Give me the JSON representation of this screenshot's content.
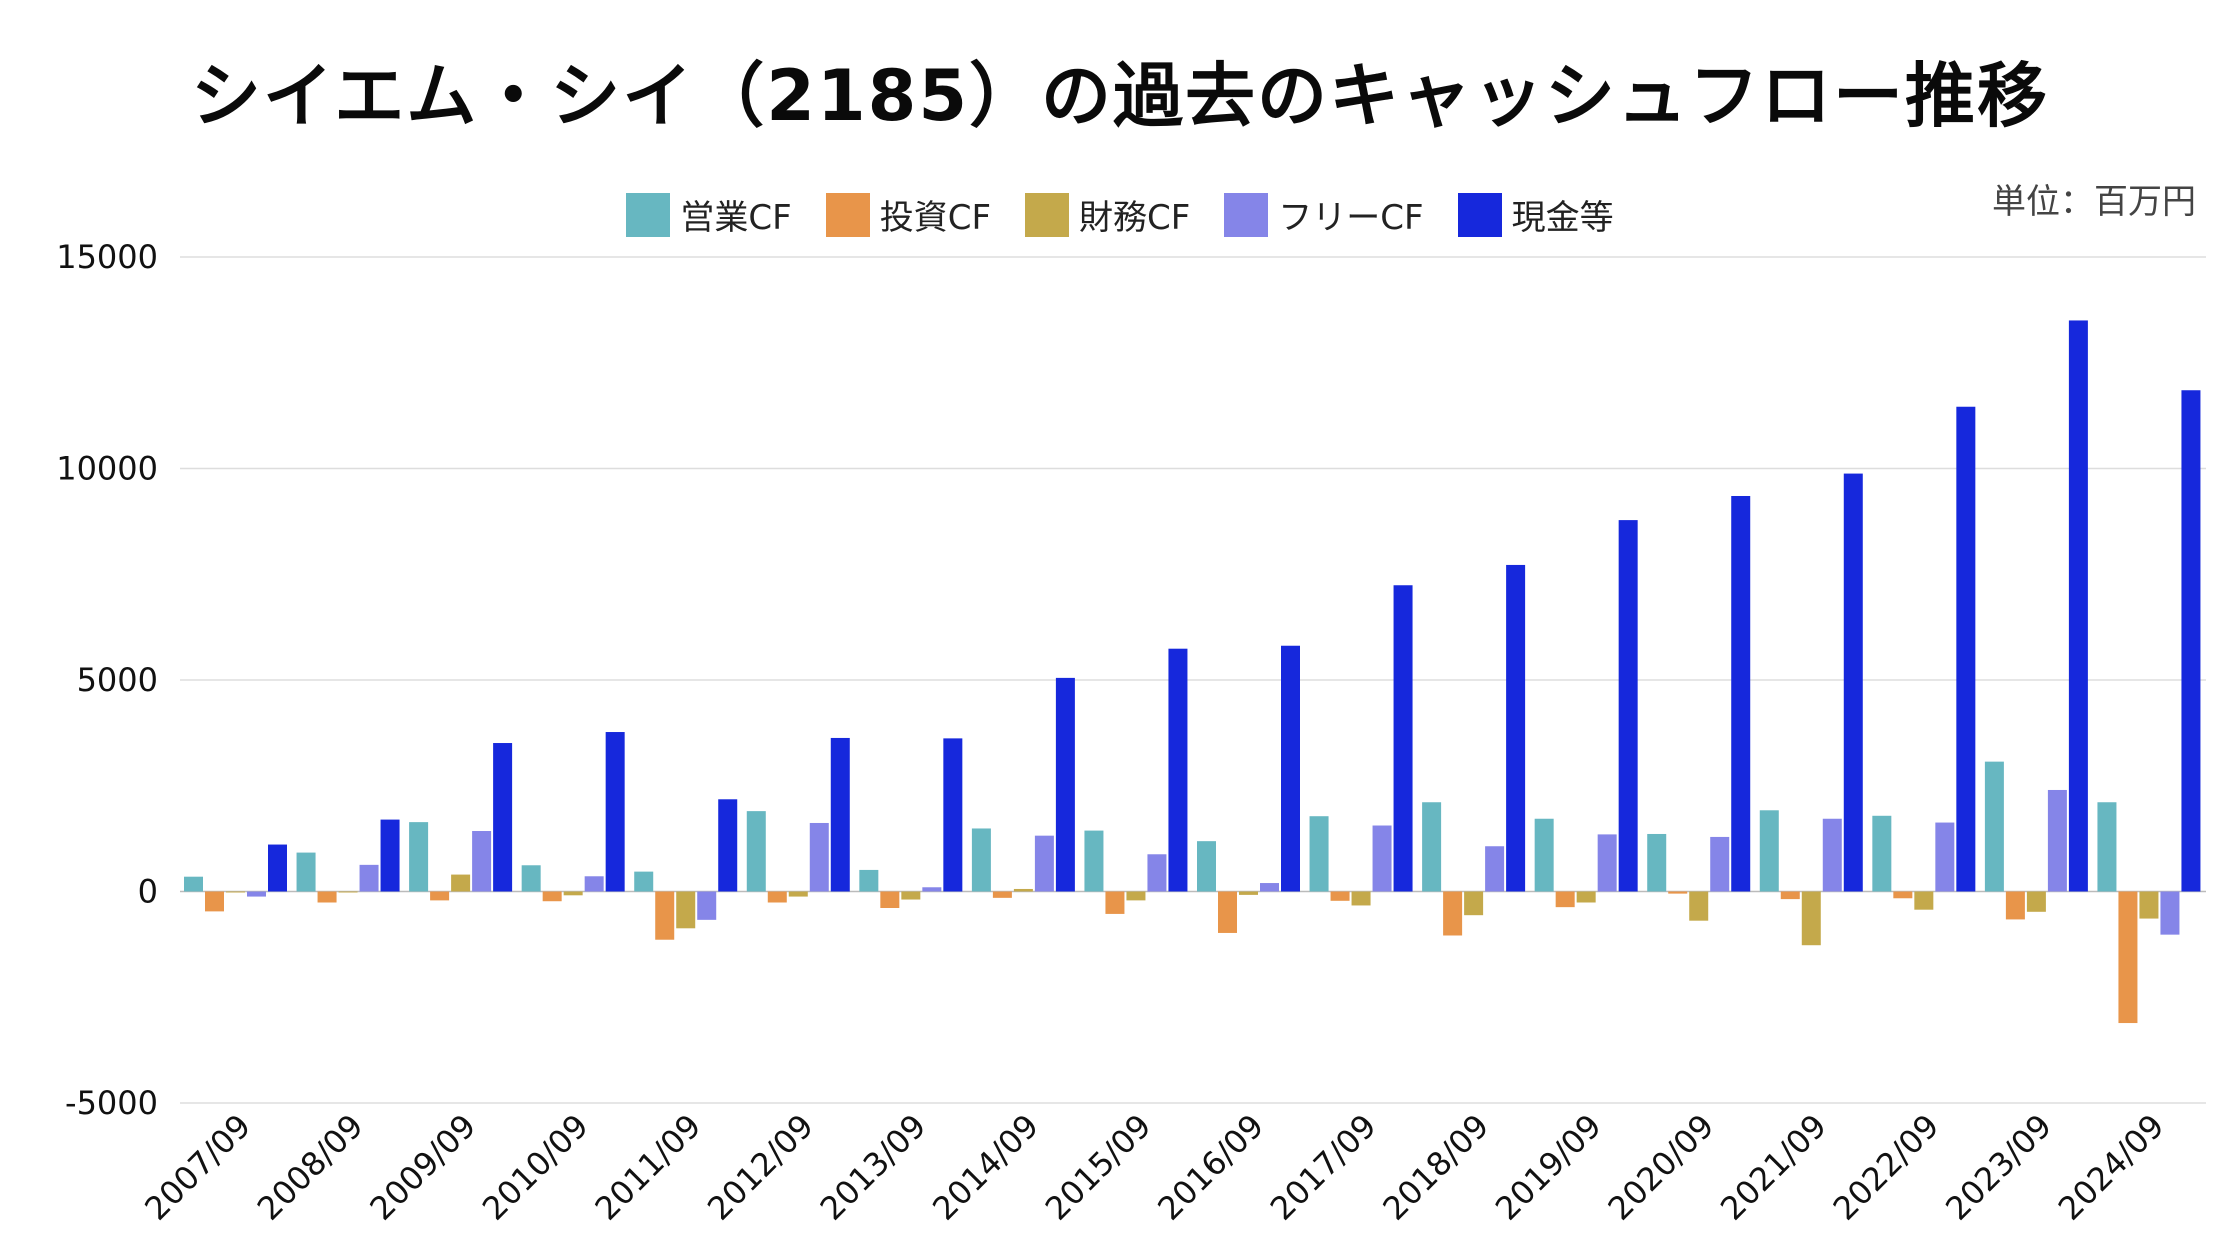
{
  "header": {
    "title": "シイエム・シイ（2185）の過去のキャッシュフロー推移",
    "unit": "単位：百万円"
  },
  "chart_data": {
    "type": "bar",
    "title": "シイエム・シイ（2185）の過去のキャッシュフロー推移",
    "unit": "単位：百万円",
    "xlabel": "",
    "ylabel": "",
    "ylim": [
      -5000,
      15000
    ],
    "yticks": [
      15000,
      10000,
      5000,
      0,
      -5000
    ],
    "grid": true,
    "legend_position": "top",
    "categories": [
      "2007/09",
      "2008/09",
      "2009/09",
      "2010/09",
      "2011/09",
      "2012/09",
      "2013/09",
      "2014/09",
      "2015/09",
      "2016/09",
      "2017/09",
      "2018/09",
      "2019/09",
      "2020/09",
      "2021/09",
      "2022/09",
      "2023/09",
      "2024/09"
    ],
    "series": [
      {
        "name": "営業CF",
        "color": "#67b7c1",
        "values": [
          350,
          920,
          1640,
          620,
          470,
          1900,
          510,
          1490,
          1440,
          1190,
          1780,
          2110,
          1720,
          1360,
          1920,
          1790,
          3070,
          2110
        ]
      },
      {
        "name": "投資CF",
        "color": "#e8954a",
        "values": [
          -470,
          -260,
          -210,
          -230,
          -1140,
          -260,
          -390,
          -150,
          -530,
          -980,
          -220,
          -1040,
          -370,
          -50,
          -180,
          -160,
          -660,
          -3110
        ]
      },
      {
        "name": "財務CF",
        "color": "#c4a94b",
        "values": [
          -20,
          -20,
          400,
          -90,
          -870,
          -120,
          -190,
          60,
          -210,
          -80,
          -330,
          -560,
          -260,
          -690,
          -1270,
          -430,
          -480,
          -640
        ]
      },
      {
        "name": "フリーCF",
        "color": "#8585e8",
        "values": [
          -120,
          630,
          1430,
          360,
          -670,
          1620,
          100,
          1320,
          880,
          200,
          1560,
          1070,
          1350,
          1290,
          1720,
          1630,
          2400,
          -1020
        ]
      },
      {
        "name": "現金等",
        "color": "#1628dc",
        "values": [
          1110,
          1700,
          3510,
          3770,
          2180,
          3630,
          3620,
          5050,
          5740,
          5810,
          7240,
          7720,
          8780,
          9350,
          9880,
          11460,
          13500,
          11850
        ]
      }
    ]
  }
}
